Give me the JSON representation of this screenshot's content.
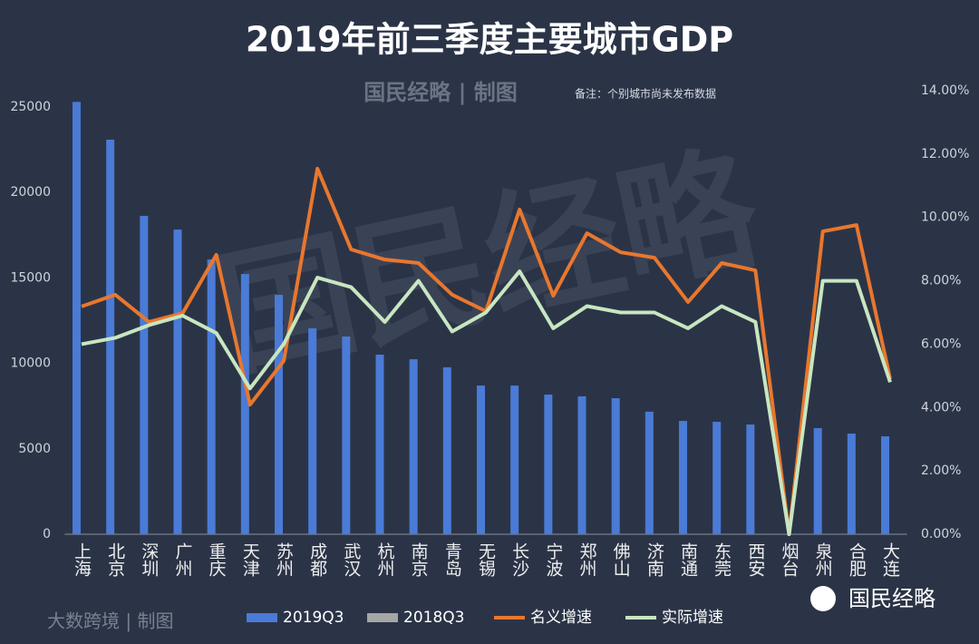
{
  "chart_data": {
    "type": "bar_line",
    "title": "2019年前三季度主要城市GDP",
    "credit": "国民经略 | 制图",
    "note": "备注：个别城市尚未发布数据",
    "watermark": "国民经略",
    "source_credit": "大数跨境 | 制图",
    "logo_text": "国民经略",
    "categories": [
      "上海",
      "北京",
      "深圳",
      "广州",
      "重庆",
      "天津",
      "苏州",
      "成都",
      "武汉",
      "杭州",
      "南京",
      "青岛",
      "无锡",
      "长沙",
      "宁波",
      "郑州",
      "佛山",
      "济南",
      "南通",
      "东莞",
      "西安",
      "烟台",
      "泉州",
      "合肥",
      "大连"
    ],
    "series": [
      {
        "name": "2019Q3",
        "kind": "bar",
        "color": "#4a7bd6",
        "values": [
          25300,
          23090,
          18630,
          17830,
          16080,
          15230,
          14010,
          12050,
          11570,
          10510,
          10240,
          9770,
          8700,
          8700,
          8170,
          8070,
          7960,
          7170,
          6630,
          6580,
          6420,
          null,
          6210,
          5890,
          5730
        ]
      },
      {
        "name": "2018Q3",
        "kind": "bar",
        "color": "#a6a6a6",
        "values": [
          null,
          null,
          null,
          null,
          null,
          null,
          null,
          null,
          null,
          null,
          null,
          null,
          null,
          null,
          null,
          null,
          null,
          null,
          null,
          null,
          null,
          null,
          null,
          null,
          null
        ]
      },
      {
        "name": "名义增速",
        "kind": "line",
        "axis": "y2",
        "color": "#e8772e",
        "values": [
          7.19,
          7.56,
          6.7,
          6.98,
          8.82,
          4.09,
          5.47,
          11.54,
          8.99,
          8.67,
          8.56,
          7.56,
          7.04,
          10.25,
          7.53,
          9.5,
          8.9,
          8.73,
          7.33,
          8.56,
          8.33,
          0,
          9.56,
          9.76,
          4.9
        ]
      },
      {
        "name": "实际增速",
        "kind": "line",
        "axis": "y2",
        "color": "#c8e6c0",
        "values": [
          6.0,
          6.2,
          6.6,
          6.9,
          6.35,
          4.6,
          6.0,
          8.1,
          7.8,
          6.7,
          8.0,
          6.4,
          7.0,
          8.3,
          6.5,
          7.2,
          7.0,
          7.0,
          6.5,
          7.2,
          6.7,
          0,
          8.0,
          8.0,
          4.8
        ]
      }
    ],
    "ylim": [
      0,
      25000
    ],
    "yticks": [
      0,
      5000,
      10000,
      15000,
      20000,
      25000
    ],
    "y2lim": [
      0,
      14
    ],
    "y2ticks": [
      {
        "value": 0,
        "label": "0.00%"
      },
      {
        "value": 2,
        "label": "2.00%"
      },
      {
        "value": 4,
        "label": "4.00%"
      },
      {
        "value": 6,
        "label": "6.00%"
      },
      {
        "value": 8,
        "label": "8.00%"
      },
      {
        "value": 10,
        "label": "10.00%"
      },
      {
        "value": 12,
        "label": "12.00%"
      },
      {
        "value": 14,
        "label": "14.00%"
      }
    ],
    "grid": false,
    "legend": "bottom"
  }
}
